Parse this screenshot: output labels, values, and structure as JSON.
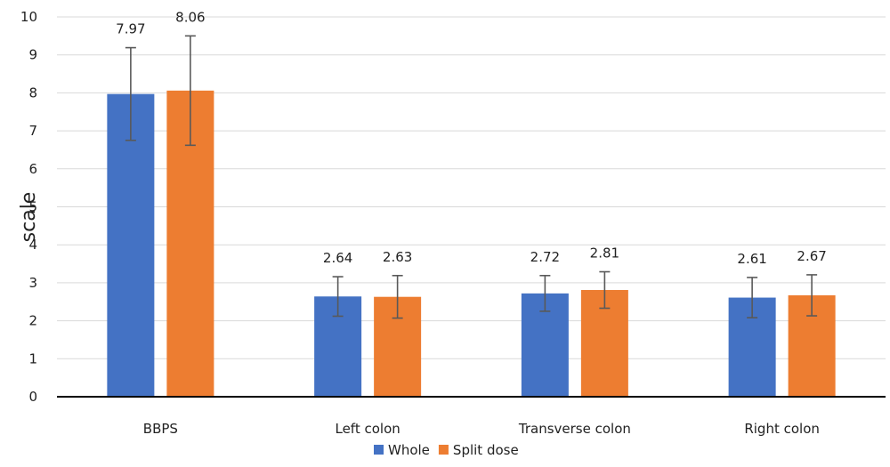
{
  "chart_data": {
    "type": "bar",
    "title": "",
    "xlabel": "",
    "ylabel": "scale",
    "ylim": [
      0,
      10
    ],
    "yticks": [
      0,
      1,
      2,
      3,
      4,
      5,
      6,
      7,
      8,
      9,
      10
    ],
    "grid": true,
    "legend_position": "bottom",
    "categories": [
      "BBPS",
      "Left colon",
      "Transverse colon",
      "Right colon"
    ],
    "series": [
      {
        "name": "Whole",
        "color": "#4472c4",
        "values": [
          7.97,
          2.64,
          2.72,
          2.61
        ],
        "labels": [
          "7.97",
          "2.64",
          "2.72",
          "2.61"
        ],
        "error_low": [
          6.75,
          2.12,
          2.25,
          2.08
        ],
        "error_high": [
          9.19,
          3.16,
          3.19,
          3.14
        ]
      },
      {
        "name": "Split dose",
        "color": "#ed7d31",
        "values": [
          8.06,
          2.63,
          2.81,
          2.67
        ],
        "labels": [
          "8.06",
          "2.63",
          "2.81",
          "2.67"
        ],
        "error_low": [
          6.62,
          2.07,
          2.33,
          2.13
        ],
        "error_high": [
          9.5,
          3.19,
          3.29,
          3.21
        ]
      }
    ]
  }
}
